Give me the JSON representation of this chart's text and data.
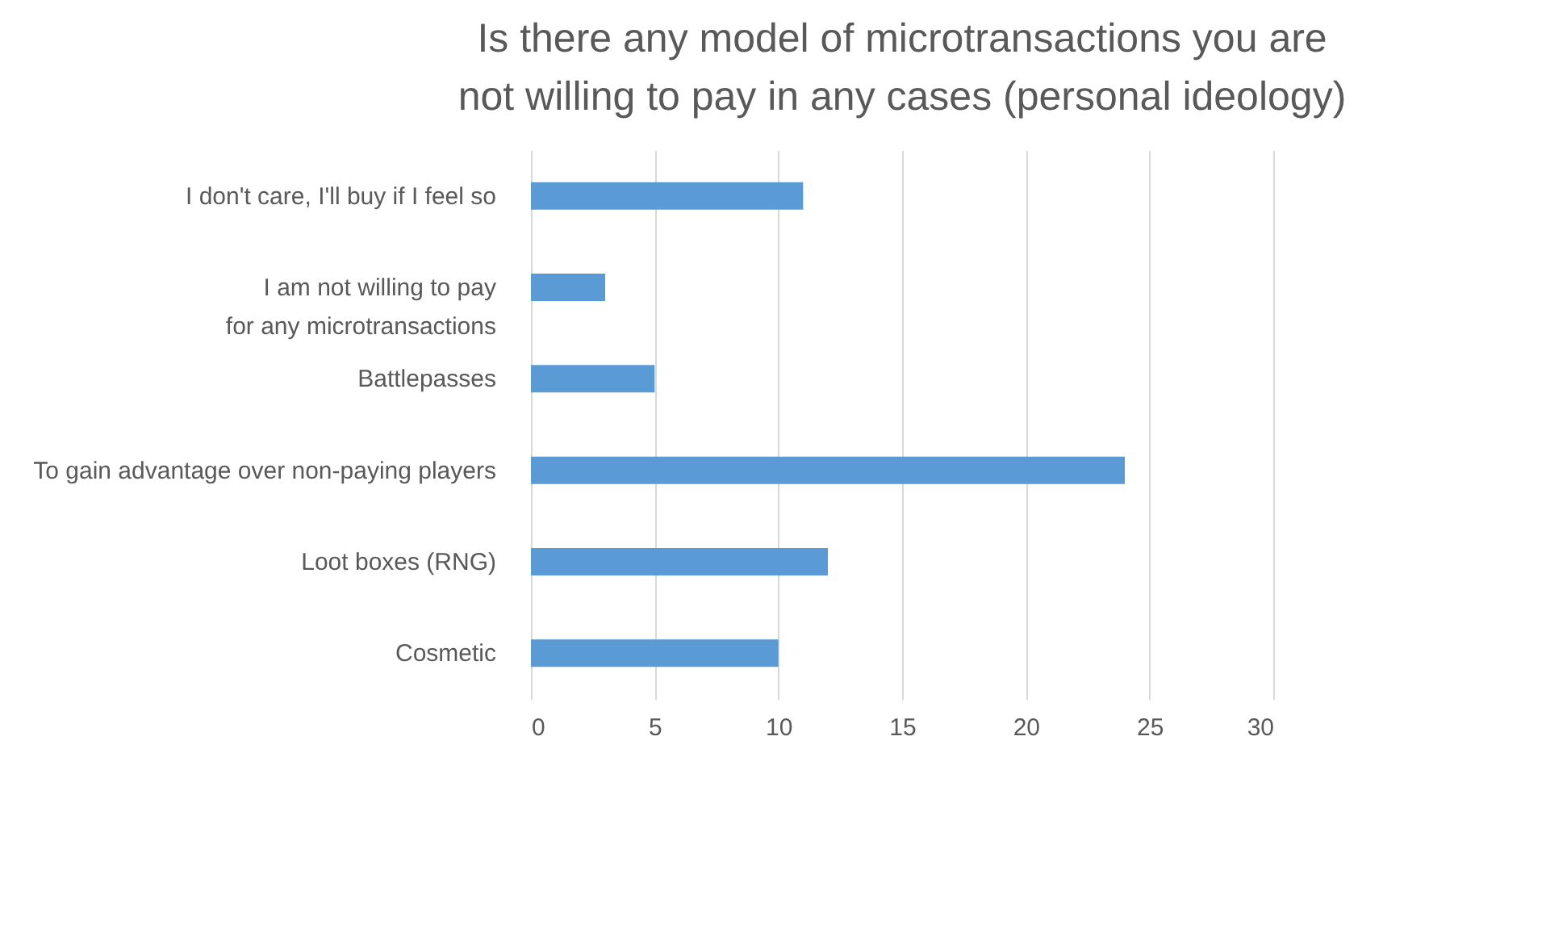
{
  "chart_data": {
    "type": "bar",
    "orientation": "horizontal",
    "title": "Is there any model of microtransactions you are not willing to pay in any cases (personal ideology)",
    "categories": [
      "I don't care, I'll buy if I feel so",
      "I am not willing to pay for any microtransactions",
      "Battlepasses",
      "To gain advantage over non-paying players",
      "Loot boxes (RNG)",
      "Cosmetic"
    ],
    "values": [
      11,
      3,
      5,
      24,
      12,
      10
    ],
    "color": "#5b9bd5",
    "xlim": [
      0,
      30
    ],
    "xticks": [
      0,
      5,
      10,
      15,
      20,
      25,
      30
    ],
    "grid": "x"
  }
}
